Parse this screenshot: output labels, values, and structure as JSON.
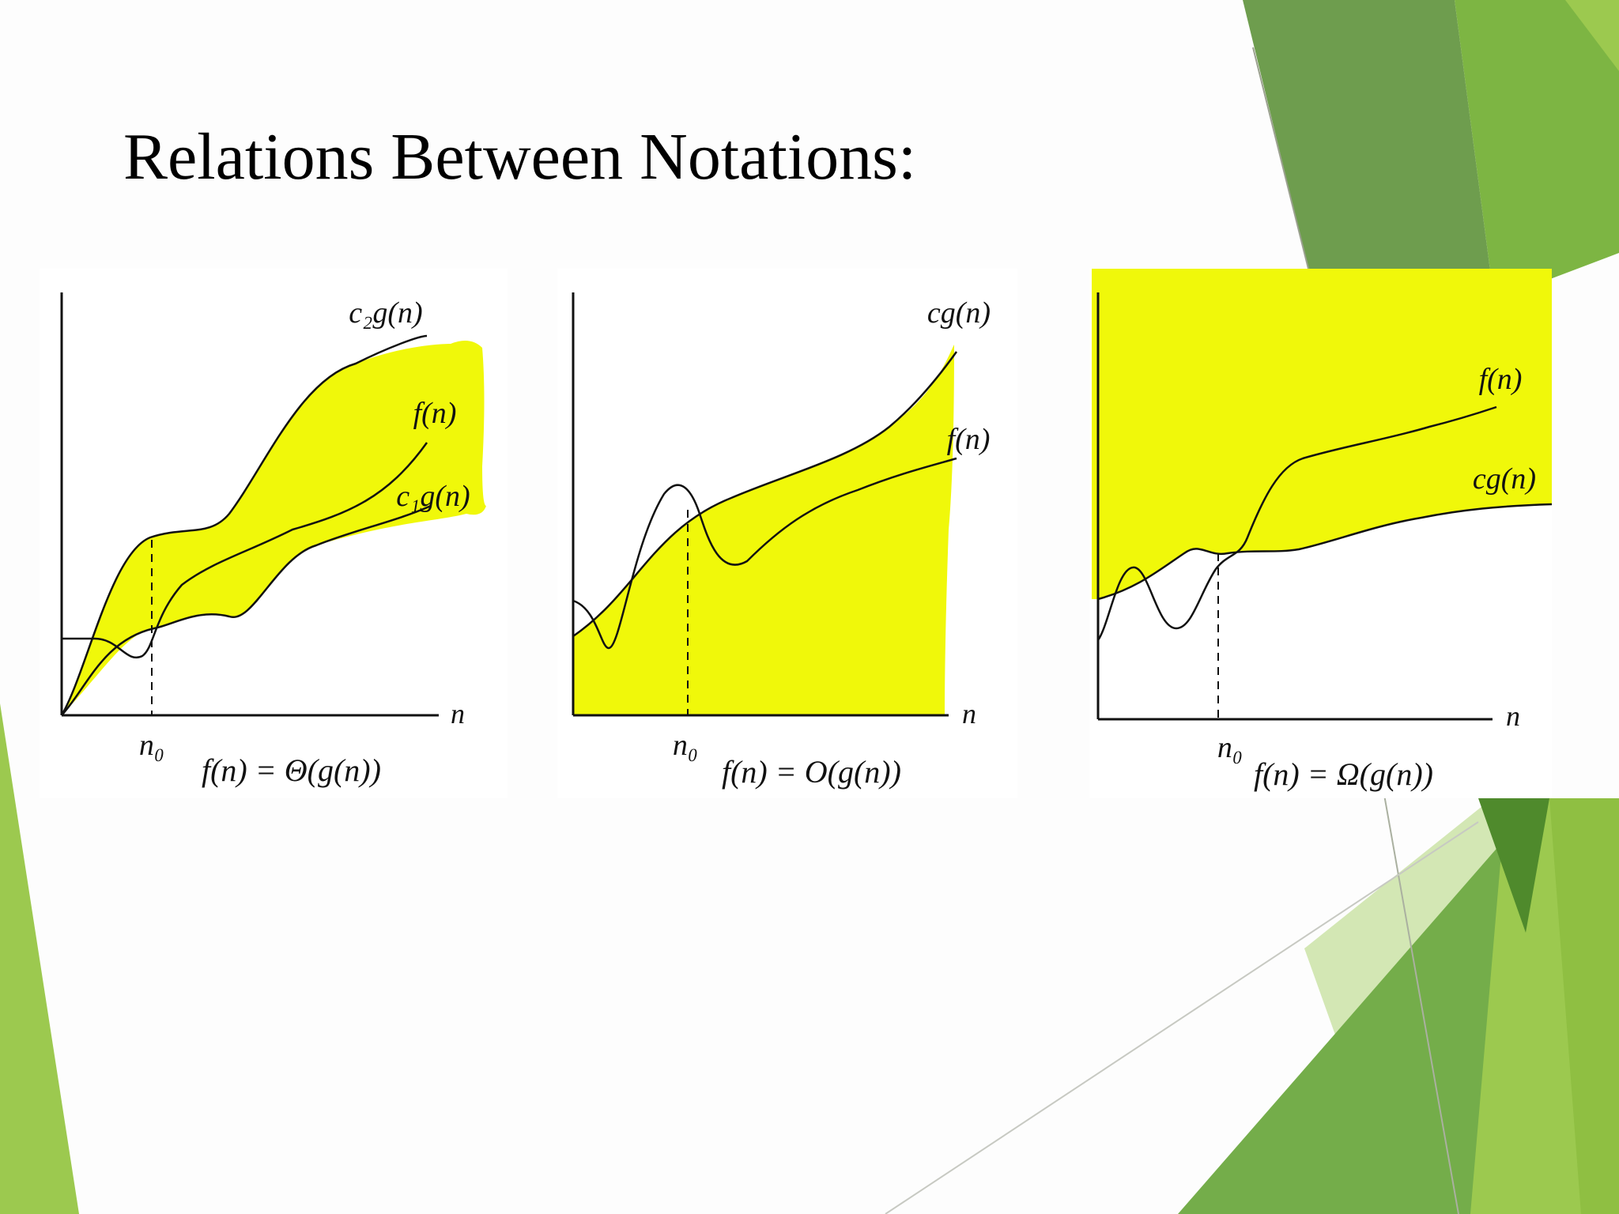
{
  "slide": {
    "title": "Relations Between Notations:",
    "colors": {
      "highlight": "#f0f80a",
      "green_dark": "#5f9a3c",
      "green_mid": "#7db543",
      "green_light": "#9cc94f",
      "green_pale": "#d3e7b4",
      "curve": "#111111"
    }
  },
  "panels": [
    {
      "id": "theta",
      "upper_label": "c₂g(n)",
      "middle_label": "f(n)",
      "lower_label": "c₁g(n)",
      "axis_label": "n",
      "threshold_label": "n₀",
      "formula": "f(n) = Θ(g(n))"
    },
    {
      "id": "big-o",
      "upper_label": "cg(n)",
      "middle_label": "f(n)",
      "axis_label": "n",
      "threshold_label": "n₀",
      "formula": "f(n) = O(g(n))"
    },
    {
      "id": "omega",
      "upper_label": "f(n)",
      "middle_label": "cg(n)",
      "axis_label": "n",
      "threshold_label": "n₀",
      "formula": "f(n) = Ω(g(n))"
    }
  ]
}
